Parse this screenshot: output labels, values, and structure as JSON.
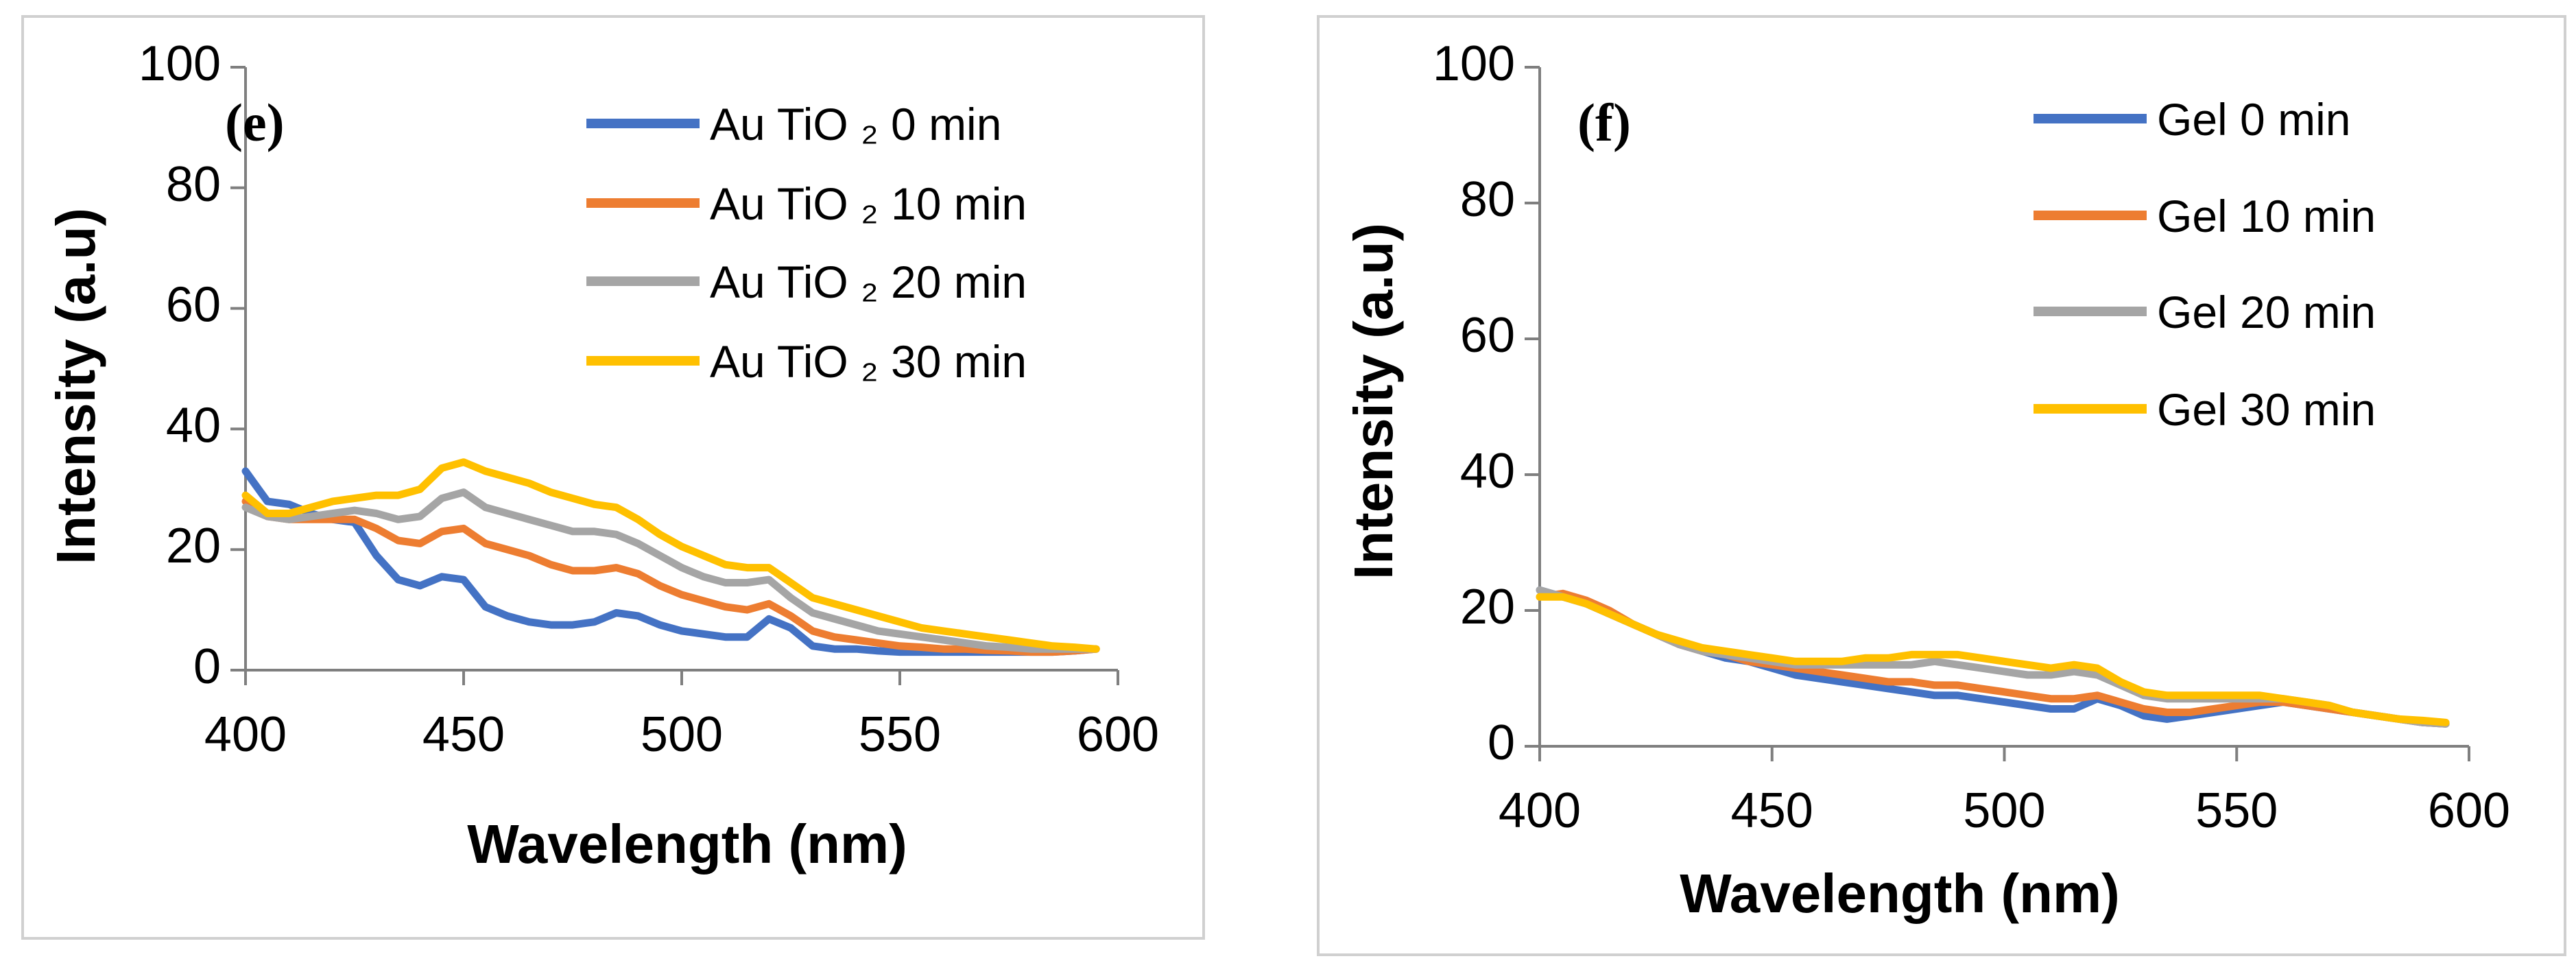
{
  "chart_data": [
    {
      "type": "line",
      "panel_label": "(e)",
      "xlabel": "Wavelength (nm)",
      "ylabel": "Intensity (a.u)",
      "xlim": [
        400,
        600
      ],
      "ylim": [
        0,
        100
      ],
      "xticks": [
        400,
        450,
        500,
        550,
        600
      ],
      "yticks": [
        0,
        20,
        40,
        60,
        80,
        100
      ],
      "legend_position": "top-right",
      "series": [
        {
          "name": "Au TiO ₂ 0 min",
          "color": "#4472C4",
          "x": [
            400,
            405,
            410,
            415,
            420,
            425,
            430,
            435,
            440,
            445,
            450,
            455,
            460,
            465,
            470,
            475,
            480,
            485,
            490,
            495,
            500,
            505,
            510,
            515,
            520,
            525,
            530,
            535,
            540,
            545,
            550,
            555,
            560,
            565,
            570,
            575,
            580,
            585,
            590,
            595
          ],
          "y": [
            33,
            28,
            27.5,
            26,
            25,
            24.5,
            19,
            15,
            14,
            15.5,
            15,
            10.5,
            9,
            8,
            7.5,
            7.5,
            8,
            9.5,
            9,
            7.5,
            6.5,
            6,
            5.5,
            5.5,
            8.5,
            7,
            4,
            3.5,
            3.5,
            3.2,
            3,
            3,
            3,
            3,
            3,
            3,
            3,
            3,
            3.2,
            3.5
          ]
        },
        {
          "name": "Au TiO ₂ 10 min",
          "color": "#ED7D31",
          "x": [
            400,
            405,
            410,
            415,
            420,
            425,
            430,
            435,
            440,
            445,
            450,
            455,
            460,
            465,
            470,
            475,
            480,
            485,
            490,
            495,
            500,
            505,
            510,
            515,
            520,
            525,
            530,
            535,
            540,
            545,
            550,
            555,
            560,
            565,
            570,
            575,
            580,
            585,
            590,
            595
          ],
          "y": [
            28,
            25.5,
            25,
            25,
            25,
            25,
            23.5,
            21.5,
            21,
            23,
            23.5,
            21,
            20,
            19,
            17.5,
            16.5,
            16.5,
            17,
            16,
            14,
            12.5,
            11.5,
            10.5,
            10,
            11,
            9,
            6.5,
            5.5,
            5,
            4.5,
            4,
            3.8,
            3.5,
            3.5,
            3.3,
            3.2,
            3,
            3,
            3.2,
            3.5
          ]
        },
        {
          "name": "Au TiO ₂ 20 min",
          "color": "#A5A5A5",
          "x": [
            400,
            405,
            410,
            415,
            420,
            425,
            430,
            435,
            440,
            445,
            450,
            455,
            460,
            465,
            470,
            475,
            480,
            485,
            490,
            495,
            500,
            505,
            510,
            515,
            520,
            525,
            530,
            535,
            540,
            545,
            550,
            555,
            560,
            565,
            570,
            575,
            580,
            585,
            590,
            595
          ],
          "y": [
            27,
            25.5,
            25,
            25.5,
            26,
            26.5,
            26,
            25,
            25.5,
            28.5,
            29.5,
            27,
            26,
            25,
            24,
            23,
            23,
            22.5,
            21,
            19,
            17,
            15.5,
            14.5,
            14.5,
            15,
            12,
            9.5,
            8.5,
            7.5,
            6.5,
            6,
            5.5,
            5,
            4.5,
            4,
            3.8,
            3.5,
            3.5,
            3.5,
            3.5
          ]
        },
        {
          "name": "Au TiO ₂ 30 min",
          "color": "#FFC000",
          "x": [
            400,
            405,
            410,
            415,
            420,
            425,
            430,
            435,
            440,
            445,
            450,
            455,
            460,
            465,
            470,
            475,
            480,
            485,
            490,
            495,
            500,
            505,
            510,
            515,
            520,
            525,
            530,
            535,
            540,
            545,
            550,
            555,
            560,
            565,
            570,
            575,
            580,
            585,
            590,
            595
          ],
          "y": [
            29,
            26,
            26,
            27,
            28,
            28.5,
            29,
            29,
            30,
            33.5,
            34.5,
            33,
            32,
            31,
            29.5,
            28.5,
            27.5,
            27,
            25,
            22.5,
            20.5,
            19,
            17.5,
            17,
            17,
            14.5,
            12,
            11,
            10,
            9,
            8,
            7,
            6.5,
            6,
            5.5,
            5,
            4.5,
            4,
            3.8,
            3.5
          ]
        }
      ]
    },
    {
      "type": "line",
      "panel_label": "(f)",
      "xlabel": "Wavelength (nm)",
      "ylabel": "Intensity (a.u)",
      "xlim": [
        400,
        600
      ],
      "ylim": [
        0,
        100
      ],
      "xticks": [
        400,
        450,
        500,
        550,
        600
      ],
      "yticks": [
        0,
        20,
        40,
        60,
        80,
        100
      ],
      "legend_position": "top-right",
      "series": [
        {
          "name": "Gel 0 min",
          "color": "#4472C4",
          "x": [
            400,
            405,
            410,
            415,
            420,
            425,
            430,
            435,
            440,
            445,
            450,
            455,
            460,
            465,
            470,
            475,
            480,
            485,
            490,
            495,
            500,
            505,
            510,
            515,
            520,
            525,
            530,
            535,
            540,
            545,
            550,
            555,
            560,
            565,
            570,
            575,
            580,
            585,
            590,
            595
          ],
          "y": [
            23,
            22,
            21,
            19.5,
            18,
            16.5,
            15,
            14,
            13,
            12.5,
            11.5,
            10.5,
            10,
            9.5,
            9,
            8.5,
            8,
            7.5,
            7.5,
            7,
            6.5,
            6,
            5.5,
            5.5,
            7,
            6,
            4.5,
            4,
            4.5,
            5,
            5.5,
            6,
            6.5,
            6,
            5.5,
            5,
            4.5,
            4,
            3.5,
            3.3
          ]
        },
        {
          "name": "Gel 10 min",
          "color": "#ED7D31",
          "x": [
            400,
            405,
            410,
            415,
            420,
            425,
            430,
            435,
            440,
            445,
            450,
            455,
            460,
            465,
            470,
            475,
            480,
            485,
            490,
            495,
            500,
            505,
            510,
            515,
            520,
            525,
            530,
            535,
            540,
            545,
            550,
            555,
            560,
            565,
            570,
            575,
            580,
            585,
            590,
            595
          ],
          "y": [
            22,
            22.5,
            21.5,
            20,
            18,
            16.5,
            15,
            14,
            13.5,
            12.5,
            12,
            11.5,
            11,
            10.5,
            10,
            9.5,
            9.5,
            9,
            9,
            8.5,
            8,
            7.5,
            7,
            7,
            7.5,
            6.5,
            5.5,
            5,
            5,
            5.5,
            6,
            6.5,
            6.5,
            6,
            5.5,
            5,
            4.5,
            4,
            3.5,
            3.3
          ]
        },
        {
          "name": "Gel 20 min",
          "color": "#A5A5A5",
          "x": [
            400,
            405,
            410,
            415,
            420,
            425,
            430,
            435,
            440,
            445,
            450,
            455,
            460,
            465,
            470,
            475,
            480,
            485,
            490,
            495,
            500,
            505,
            510,
            515,
            520,
            525,
            530,
            535,
            540,
            545,
            550,
            555,
            560,
            565,
            570,
            575,
            580,
            585,
            590,
            595
          ],
          "y": [
            23,
            22,
            21,
            19.5,
            18,
            16.5,
            15,
            14,
            13.5,
            13,
            12.5,
            12,
            12,
            12,
            12,
            12,
            12,
            12.5,
            12,
            11.5,
            11,
            10.5,
            10.5,
            11,
            10.5,
            9,
            7.5,
            7,
            7,
            7,
            7,
            7,
            7,
            6.5,
            6,
            5,
            4.5,
            4,
            3.5,
            3.3
          ]
        },
        {
          "name": "Gel 30 min",
          "color": "#FFC000",
          "x": [
            400,
            405,
            410,
            415,
            420,
            425,
            430,
            435,
            440,
            445,
            450,
            455,
            460,
            465,
            470,
            475,
            480,
            485,
            490,
            495,
            500,
            505,
            510,
            515,
            520,
            525,
            530,
            535,
            540,
            545,
            550,
            555,
            560,
            565,
            570,
            575,
            580,
            585,
            590,
            595
          ],
          "y": [
            22,
            22,
            21,
            19.5,
            18,
            16.5,
            15.5,
            14.5,
            14,
            13.5,
            13,
            12.5,
            12.5,
            12.5,
            13,
            13,
            13.5,
            13.5,
            13.5,
            13,
            12.5,
            12,
            11.5,
            12,
            11.5,
            9.5,
            8,
            7.5,
            7.5,
            7.5,
            7.5,
            7.5,
            7,
            6.5,
            6,
            5,
            4.5,
            4,
            3.8,
            3.5
          ]
        }
      ]
    }
  ]
}
